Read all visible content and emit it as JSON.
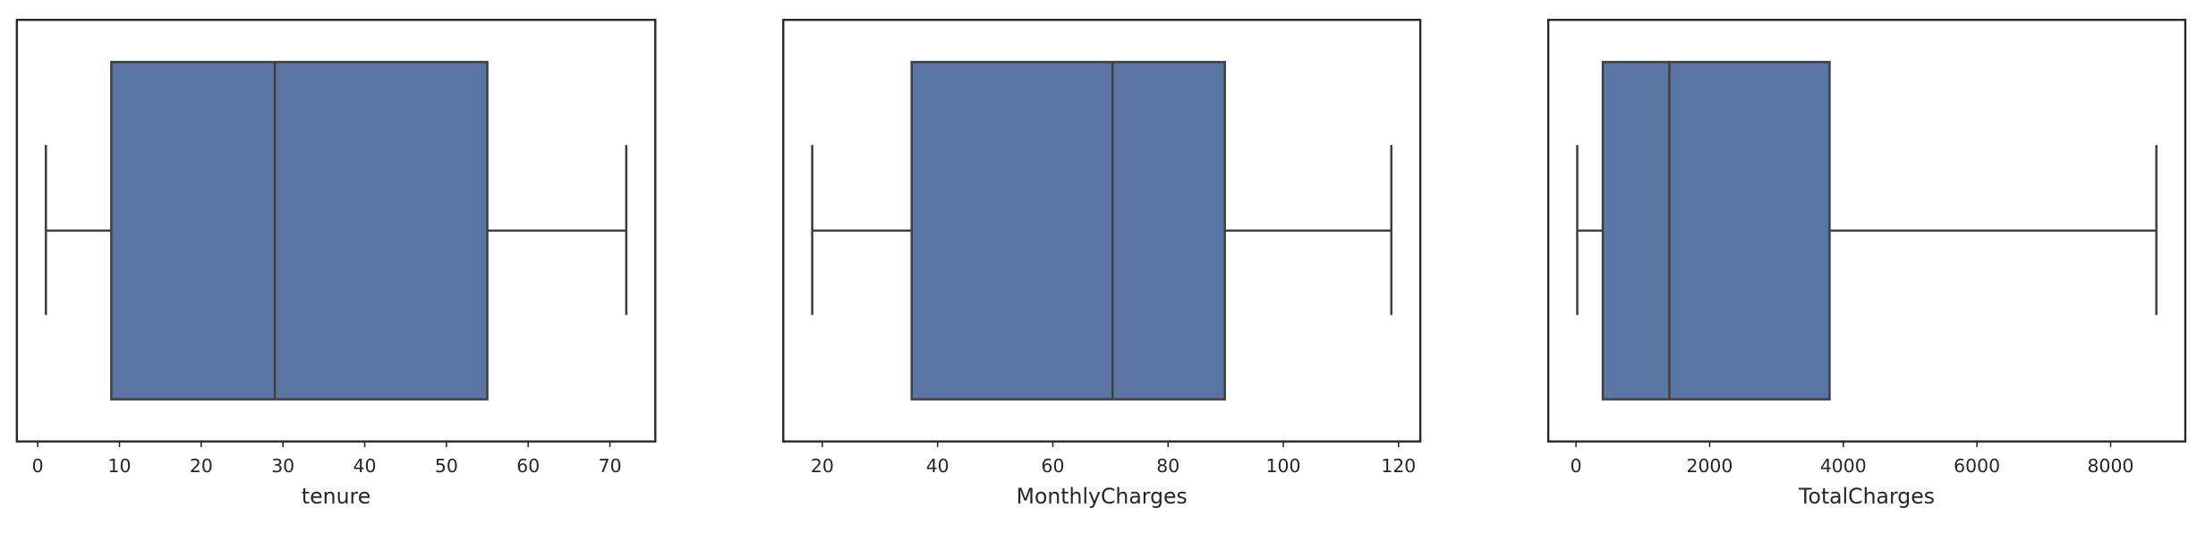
{
  "chart_data": [
    {
      "type": "box",
      "x_label": "tenure",
      "xlim": [
        -2.55,
        75.55
      ],
      "xticks": [
        0,
        10,
        20,
        30,
        40,
        50,
        60,
        70
      ],
      "min": 1,
      "q1": 9,
      "median": 29,
      "q3": 55,
      "max": 72,
      "color": "#5975a4"
    },
    {
      "type": "box",
      "x_label": "MonthlyCharges",
      "xlim": [
        13.225,
        123.775
      ],
      "xticks": [
        20,
        40,
        60,
        80,
        100,
        120
      ],
      "min": 18.25,
      "q1": 35.5,
      "median": 70.35,
      "q3": 89.85,
      "max": 118.75,
      "color": "#5975a4"
    },
    {
      "type": "box",
      "x_label": "TotalCharges",
      "xlim": [
        -414.5,
        9118
      ],
      "xticks": [
        0,
        2000,
        4000,
        6000,
        8000
      ],
      "min": 18.8,
      "q1": 401.45,
      "median": 1397.5,
      "q3": 3794.7,
      "max": 8684.8,
      "color": "#5975a4"
    }
  ]
}
